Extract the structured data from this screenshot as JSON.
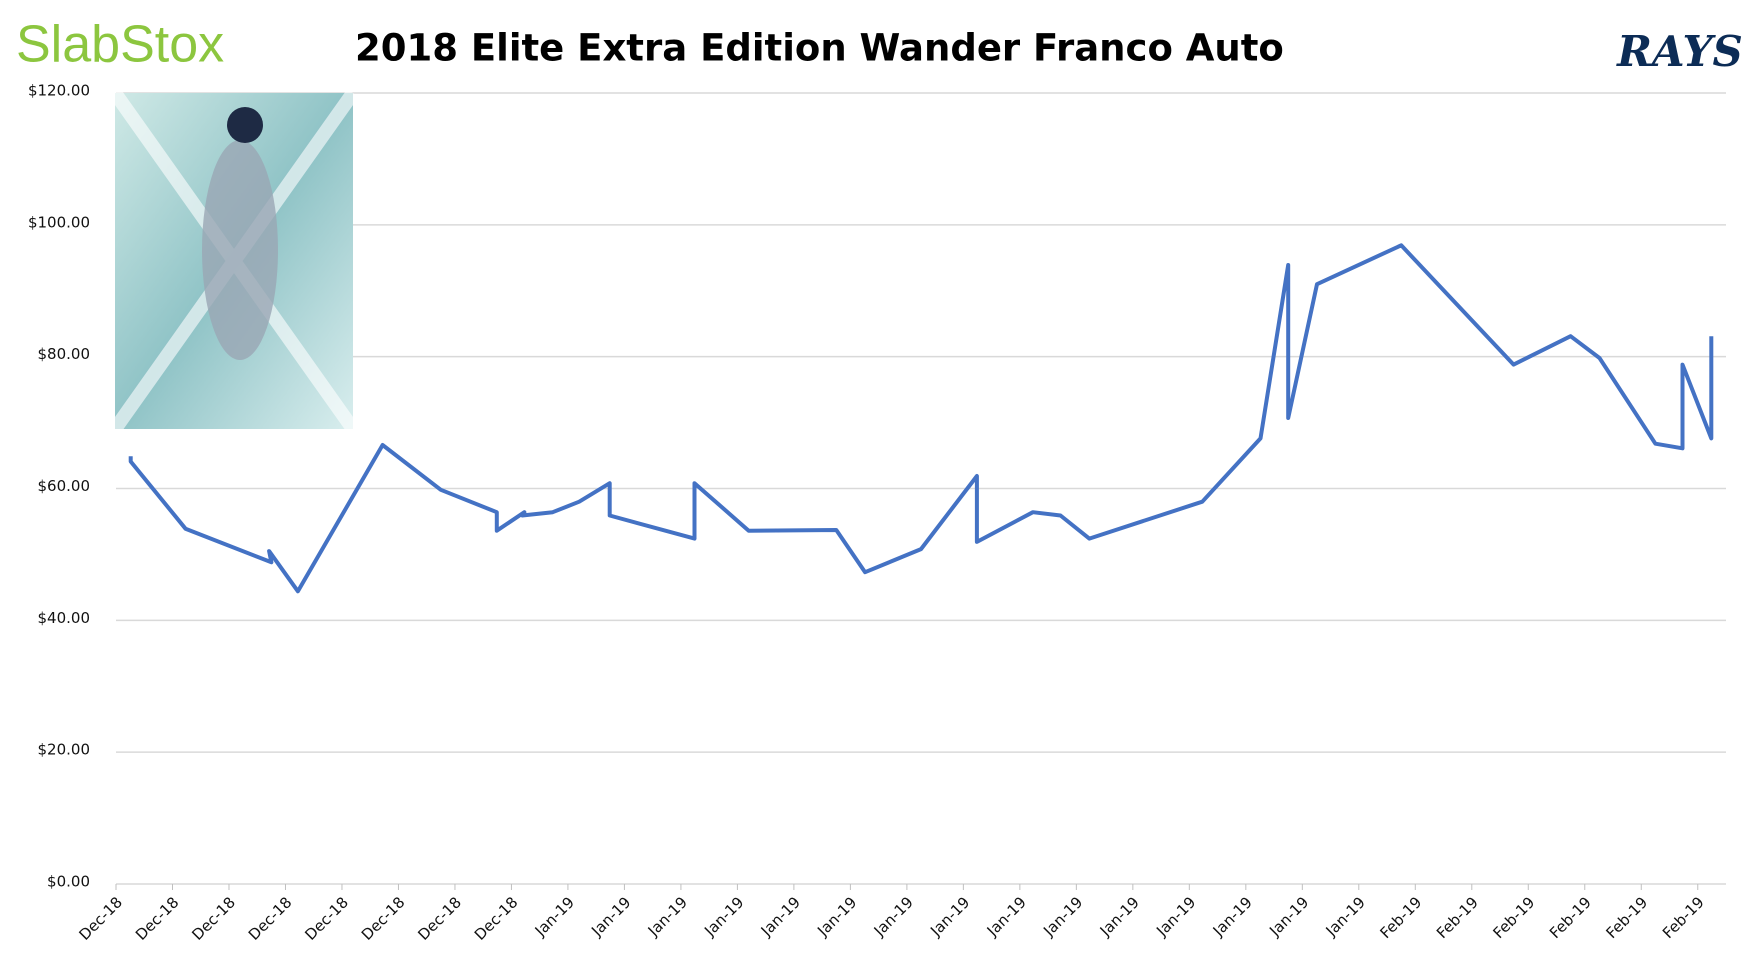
{
  "chart_data": {
    "type": "line",
    "brand": "SlabStox",
    "title": "2018 Elite Extra Edition Wander Franco Auto",
    "team_logo": "RAYS",
    "color": "#4472c4",
    "grid": true,
    "ylim": [
      0,
      120
    ],
    "yticks": [
      {
        "value": 0,
        "label": "$0.00"
      },
      {
        "value": 20,
        "label": "$20.00"
      },
      {
        "value": 40,
        "label": "$40.00"
      },
      {
        "value": 60,
        "label": "$60.00"
      },
      {
        "value": 80,
        "label": "$80.00"
      },
      {
        "value": 100,
        "label": "$100.00"
      },
      {
        "value": 120,
        "label": "$120.00"
      }
    ],
    "xlim": [
      0,
      28.5
    ],
    "xticks": [
      {
        "value": 0,
        "label": "Dec-18"
      },
      {
        "value": 1,
        "label": "Dec-18"
      },
      {
        "value": 2,
        "label": "Dec-18"
      },
      {
        "value": 3,
        "label": "Dec-18"
      },
      {
        "value": 4,
        "label": "Dec-18"
      },
      {
        "value": 5,
        "label": "Dec-18"
      },
      {
        "value": 6,
        "label": "Dec-18"
      },
      {
        "value": 7,
        "label": "Dec-18"
      },
      {
        "value": 8,
        "label": "Jan-19"
      },
      {
        "value": 9,
        "label": "Jan-19"
      },
      {
        "value": 10,
        "label": "Jan-19"
      },
      {
        "value": 11,
        "label": "Jan-19"
      },
      {
        "value": 12,
        "label": "Jan-19"
      },
      {
        "value": 13,
        "label": "Jan-19"
      },
      {
        "value": 14,
        "label": "Jan-19"
      },
      {
        "value": 15,
        "label": "Jan-19"
      },
      {
        "value": 16,
        "label": "Jan-19"
      },
      {
        "value": 17,
        "label": "Jan-19"
      },
      {
        "value": 18,
        "label": "Jan-19"
      },
      {
        "value": 19,
        "label": "Jan-19"
      },
      {
        "value": 20,
        "label": "Jan-19"
      },
      {
        "value": 21,
        "label": "Jan-19"
      },
      {
        "value": 22,
        "label": "Jan-19"
      },
      {
        "value": 23,
        "label": "Feb-19"
      },
      {
        "value": 24,
        "label": "Feb-19"
      },
      {
        "value": 25,
        "label": "Feb-19"
      },
      {
        "value": 26,
        "label": "Feb-19"
      },
      {
        "value": 27,
        "label": "Feb-19"
      },
      {
        "value": 28,
        "label": "Feb-19"
      }
    ],
    "x": [
      0.26,
      0.26,
      1.23,
      2.75,
      2.71,
      3.22,
      4.72,
      5.75,
      6.74,
      6.74,
      7.23,
      7.19,
      7.73,
      8.2,
      8.74,
      8.74,
      10.24,
      10.24,
      11.2,
      12.75,
      13.26,
      14.25,
      15.24,
      15.24,
      16.23,
      16.72,
      17.23,
      19.23,
      20.26,
      20.75,
      20.75,
      21.26,
      22.75,
      24.74,
      25.75,
      26.26,
      27.25,
      27.73,
      27.73,
      28.24,
      28.24
    ],
    "values": [
      64.9,
      64.1,
      53.9,
      48.8,
      50.5,
      44.4,
      66.6,
      59.8,
      56.4,
      53.6,
      56.4,
      55.9,
      56.4,
      58,
      60.8,
      55.9,
      52.4,
      60.8,
      53.6,
      53.7,
      47.3,
      50.8,
      61.9,
      51.9,
      56.4,
      55.9,
      52.4,
      58,
      67.6,
      93.9,
      70.7,
      91,
      96.9,
      78.8,
      83.1,
      79.8,
      66.8,
      66.1,
      78.8,
      67.6,
      83.1
    ]
  }
}
